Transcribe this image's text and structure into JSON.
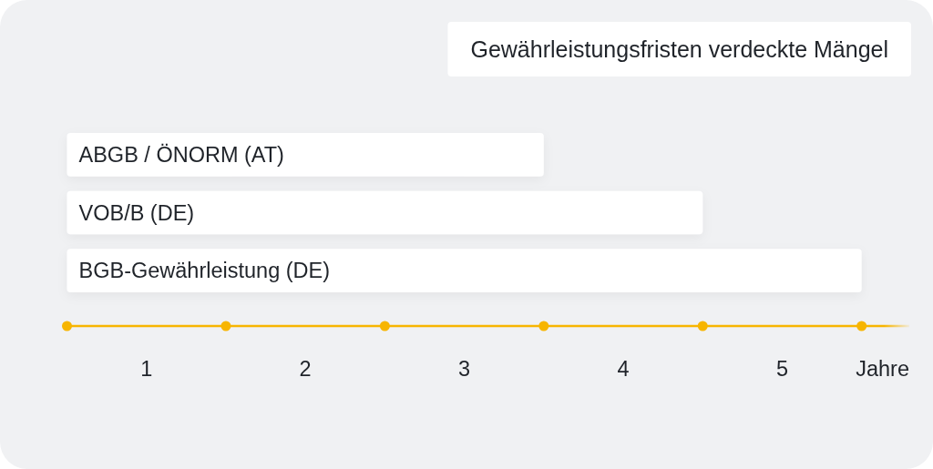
{
  "chart_data": {
    "type": "bar",
    "orientation": "horizontal",
    "title": "Gewährleistungsfristen verdeckte Mängel",
    "xlabel": "Jahre",
    "categories": [
      "ABGB / ÖNORM (AT)",
      "VOB/B (DE)",
      "BGB-Gewährleistung (DE)"
    ],
    "values": [
      3,
      4,
      5
    ],
    "color": "#ffffff",
    "xlim": [
      0,
      5.3
    ],
    "xticks": [
      {
        "value": 0.5,
        "label": "1"
      },
      {
        "value": 1.5,
        "label": "2"
      },
      {
        "value": 2.5,
        "label": "3"
      },
      {
        "value": 3.5,
        "label": "4"
      },
      {
        "value": 4.5,
        "label": "5"
      }
    ]
  }
}
